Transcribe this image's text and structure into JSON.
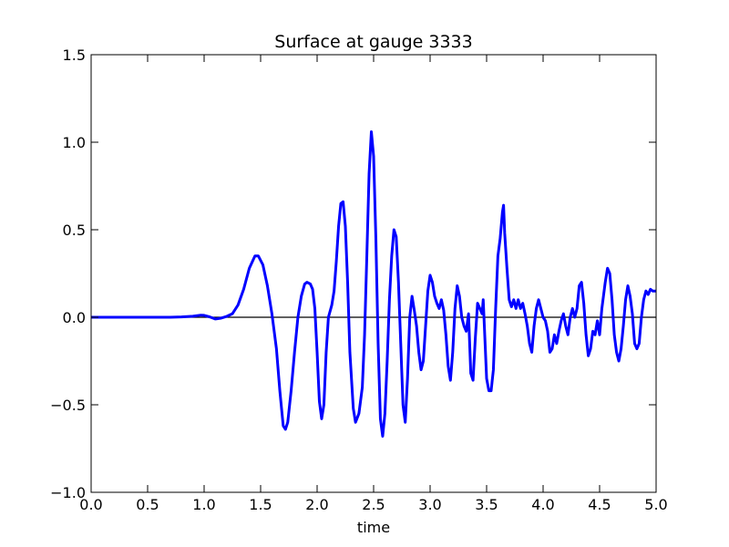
{
  "chart_data": {
    "type": "line",
    "title": "Surface at gauge 3333",
    "xlabel": "time",
    "ylabel": "",
    "xlim": [
      0.0,
      5.0
    ],
    "ylim": [
      -1.0,
      1.5
    ],
    "xticks": [
      0.0,
      0.5,
      1.0,
      1.5,
      2.0,
      2.5,
      3.0,
      3.5,
      4.0,
      4.5,
      5.0
    ],
    "xtick_labels": [
      "0.0",
      "0.5",
      "1.0",
      "1.5",
      "2.0",
      "2.5",
      "3.0",
      "3.5",
      "4.0",
      "4.5",
      "5.0"
    ],
    "yticks": [
      -1.0,
      -0.5,
      0.0,
      0.5,
      1.0,
      1.5
    ],
    "ytick_labels": [
      "−1.0",
      "−0.5",
      "0.0",
      "0.5",
      "1.0",
      "1.5"
    ],
    "grid": false,
    "reference_line": {
      "y": 0.0,
      "color": "#000000"
    },
    "series": [
      {
        "color": "#0000ff",
        "points": [
          [
            0.0,
            0.0
          ],
          [
            0.7,
            0.0
          ],
          [
            0.8,
            0.002
          ],
          [
            0.9,
            0.006
          ],
          [
            0.97,
            0.012
          ],
          [
            1.0,
            0.011
          ],
          [
            1.05,
            0.002
          ],
          [
            1.1,
            -0.01
          ],
          [
            1.15,
            -0.005
          ],
          [
            1.2,
            0.005
          ],
          [
            1.25,
            0.02
          ],
          [
            1.3,
            0.07
          ],
          [
            1.35,
            0.16
          ],
          [
            1.4,
            0.28
          ],
          [
            1.45,
            0.35
          ],
          [
            1.48,
            0.35
          ],
          [
            1.52,
            0.3
          ],
          [
            1.56,
            0.18
          ],
          [
            1.6,
            0.02
          ],
          [
            1.64,
            -0.18
          ],
          [
            1.67,
            -0.42
          ],
          [
            1.7,
            -0.62
          ],
          [
            1.72,
            -0.64
          ],
          [
            1.74,
            -0.6
          ],
          [
            1.77,
            -0.42
          ],
          [
            1.8,
            -0.2
          ],
          [
            1.83,
            0.0
          ],
          [
            1.86,
            0.12
          ],
          [
            1.89,
            0.19
          ],
          [
            1.91,
            0.2
          ],
          [
            1.94,
            0.19
          ],
          [
            1.96,
            0.16
          ],
          [
            1.98,
            0.05
          ],
          [
            2.0,
            -0.2
          ],
          [
            2.02,
            -0.48
          ],
          [
            2.04,
            -0.58
          ],
          [
            2.06,
            -0.5
          ],
          [
            2.08,
            -0.2
          ],
          [
            2.1,
            0.0
          ],
          [
            2.13,
            0.07
          ],
          [
            2.15,
            0.15
          ],
          [
            2.17,
            0.32
          ],
          [
            2.19,
            0.52
          ],
          [
            2.21,
            0.65
          ],
          [
            2.23,
            0.66
          ],
          [
            2.25,
            0.52
          ],
          [
            2.27,
            0.2
          ],
          [
            2.29,
            -0.2
          ],
          [
            2.32,
            -0.52
          ],
          [
            2.34,
            -0.6
          ],
          [
            2.37,
            -0.55
          ],
          [
            2.4,
            -0.4
          ],
          [
            2.42,
            -0.1
          ],
          [
            2.44,
            0.35
          ],
          [
            2.46,
            0.82
          ],
          [
            2.48,
            1.06
          ],
          [
            2.5,
            0.92
          ],
          [
            2.52,
            0.45
          ],
          [
            2.54,
            -0.15
          ],
          [
            2.56,
            -0.58
          ],
          [
            2.58,
            -0.68
          ],
          [
            2.6,
            -0.55
          ],
          [
            2.62,
            -0.25
          ],
          [
            2.64,
            0.1
          ],
          [
            2.66,
            0.35
          ],
          [
            2.68,
            0.5
          ],
          [
            2.7,
            0.46
          ],
          [
            2.72,
            0.2
          ],
          [
            2.74,
            -0.15
          ],
          [
            2.76,
            -0.5
          ],
          [
            2.78,
            -0.6
          ],
          [
            2.8,
            -0.35
          ],
          [
            2.82,
            0.0
          ],
          [
            2.84,
            0.12
          ],
          [
            2.86,
            0.04
          ],
          [
            2.88,
            -0.05
          ],
          [
            2.9,
            -0.2
          ],
          [
            2.92,
            -0.3
          ],
          [
            2.94,
            -0.25
          ],
          [
            2.96,
            -0.05
          ],
          [
            2.98,
            0.15
          ],
          [
            3.0,
            0.24
          ],
          [
            3.02,
            0.2
          ],
          [
            3.04,
            0.12
          ],
          [
            3.06,
            0.08
          ],
          [
            3.08,
            0.05
          ],
          [
            3.1,
            0.1
          ],
          [
            3.12,
            0.04
          ],
          [
            3.14,
            -0.1
          ],
          [
            3.16,
            -0.28
          ],
          [
            3.18,
            -0.36
          ],
          [
            3.2,
            -0.2
          ],
          [
            3.22,
            0.05
          ],
          [
            3.24,
            0.18
          ],
          [
            3.26,
            0.12
          ],
          [
            3.28,
            0.0
          ],
          [
            3.3,
            -0.05
          ],
          [
            3.32,
            -0.08
          ],
          [
            3.34,
            0.02
          ],
          [
            3.36,
            -0.32
          ],
          [
            3.38,
            -0.36
          ],
          [
            3.4,
            -0.12
          ],
          [
            3.42,
            0.08
          ],
          [
            3.44,
            0.05
          ],
          [
            3.46,
            0.02
          ],
          [
            3.47,
            0.1
          ],
          [
            3.48,
            -0.05
          ],
          [
            3.5,
            -0.35
          ],
          [
            3.52,
            -0.42
          ],
          [
            3.54,
            -0.42
          ],
          [
            3.56,
            -0.3
          ],
          [
            3.58,
            0.05
          ],
          [
            3.6,
            0.35
          ],
          [
            3.62,
            0.45
          ],
          [
            3.64,
            0.6
          ],
          [
            3.65,
            0.64
          ],
          [
            3.66,
            0.48
          ],
          [
            3.68,
            0.28
          ],
          [
            3.7,
            0.1
          ],
          [
            3.72,
            0.06
          ],
          [
            3.74,
            0.1
          ],
          [
            3.76,
            0.05
          ],
          [
            3.78,
            0.1
          ],
          [
            3.8,
            0.05
          ],
          [
            3.82,
            0.08
          ],
          [
            3.84,
            0.02
          ],
          [
            3.86,
            -0.05
          ],
          [
            3.88,
            -0.15
          ],
          [
            3.9,
            -0.2
          ],
          [
            3.92,
            -0.05
          ],
          [
            3.94,
            0.05
          ],
          [
            3.96,
            0.1
          ],
          [
            3.98,
            0.05
          ],
          [
            4.0,
            0.0
          ],
          [
            4.02,
            -0.02
          ],
          [
            4.04,
            -0.08
          ],
          [
            4.06,
            -0.2
          ],
          [
            4.08,
            -0.18
          ],
          [
            4.1,
            -0.1
          ],
          [
            4.12,
            -0.15
          ],
          [
            4.14,
            -0.08
          ],
          [
            4.16,
            -0.02
          ],
          [
            4.18,
            0.02
          ],
          [
            4.2,
            -0.05
          ],
          [
            4.22,
            -0.1
          ],
          [
            4.24,
            0.0
          ],
          [
            4.26,
            0.05
          ],
          [
            4.28,
            0.0
          ],
          [
            4.3,
            0.05
          ],
          [
            4.32,
            0.18
          ],
          [
            4.34,
            0.2
          ],
          [
            4.36,
            0.08
          ],
          [
            4.38,
            -0.1
          ],
          [
            4.4,
            -0.22
          ],
          [
            4.42,
            -0.18
          ],
          [
            4.44,
            -0.08
          ],
          [
            4.46,
            -0.1
          ],
          [
            4.48,
            -0.02
          ],
          [
            4.5,
            -0.1
          ],
          [
            4.52,
            0.05
          ],
          [
            4.55,
            0.2
          ],
          [
            4.57,
            0.28
          ],
          [
            4.59,
            0.25
          ],
          [
            4.61,
            0.1
          ],
          [
            4.63,
            -0.1
          ],
          [
            4.65,
            -0.2
          ],
          [
            4.67,
            -0.25
          ],
          [
            4.69,
            -0.18
          ],
          [
            4.71,
            -0.05
          ],
          [
            4.73,
            0.1
          ],
          [
            4.75,
            0.18
          ],
          [
            4.77,
            0.12
          ],
          [
            4.79,
            0.02
          ],
          [
            4.81,
            -0.15
          ],
          [
            4.83,
            -0.18
          ],
          [
            4.85,
            -0.15
          ],
          [
            4.87,
            0.0
          ],
          [
            4.89,
            0.1
          ],
          [
            4.91,
            0.15
          ],
          [
            4.93,
            0.13
          ],
          [
            4.95,
            0.16
          ],
          [
            4.97,
            0.15
          ],
          [
            5.0,
            0.15
          ]
        ]
      }
    ]
  }
}
